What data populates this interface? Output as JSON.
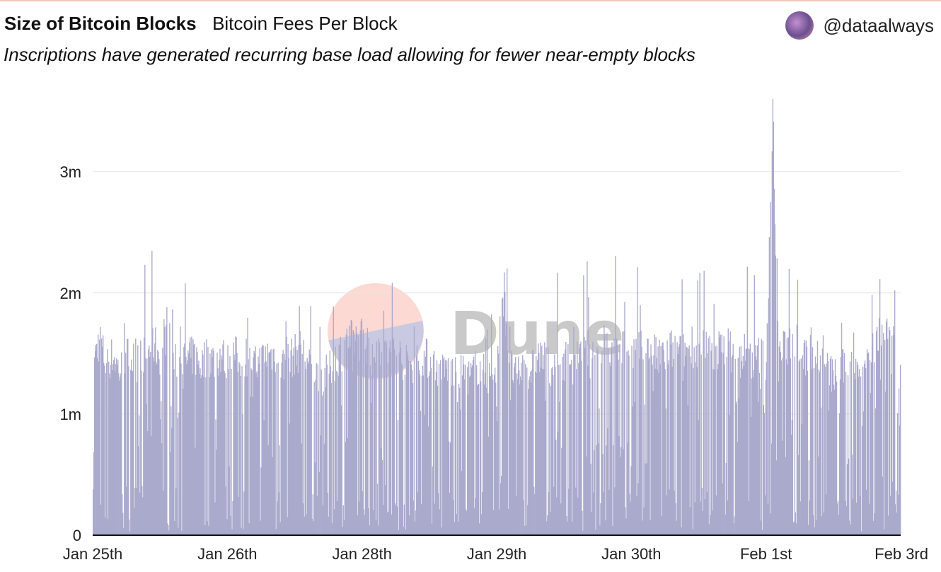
{
  "header": {
    "title": "Size of Bitcoin Blocks",
    "subtitle": "Bitcoin Fees Per Block",
    "description": "Inscriptions have generated recurring base load allowing for fewer near-empty blocks",
    "author": "@dataalways"
  },
  "watermark": {
    "text": "Dune"
  },
  "colors": {
    "series": "#aaaacd",
    "grid": "#e6e6e6",
    "baseline": "#111111",
    "watermark_top": "#fcd9d2",
    "watermark_bottom": "#c9c9e2"
  },
  "chart_data": {
    "type": "area",
    "title": "Size of Bitcoin Blocks",
    "subtitle": "Bitcoin Fees Per Block",
    "xlabel": "",
    "ylabel": "",
    "ylim": [
      0,
      3.6
    ],
    "x_ticks": [
      {
        "label": "Jan 25th",
        "day": 0
      },
      {
        "label": "Jan 26th",
        "day": 1
      },
      {
        "label": "Jan 28th",
        "day": 2
      },
      {
        "label": "Jan 29th",
        "day": 3
      },
      {
        "label": "Jan 30th",
        "day": 4
      },
      {
        "label": "Feb 1st",
        "day": 5
      },
      {
        "label": "Feb 3rd",
        "day": 6
      }
    ],
    "y_ticks": [
      {
        "label": "0",
        "value": 0
      },
      {
        "label": "1m",
        "value": 1
      },
      {
        "label": "2m",
        "value": 2
      },
      {
        "label": "3m",
        "value": 3
      }
    ],
    "grid": true,
    "legend": "none",
    "series": [
      {
        "name": "Bitcoin Fees Per Block",
        "x_unit": "day index (0 = Jan 25th, 6 = Feb 3rd)",
        "y_unit": "millions",
        "points": [
          [
            0.0,
            1.5
          ],
          [
            0.05,
            1.75
          ],
          [
            0.1,
            1.5
          ],
          [
            0.15,
            1.6
          ],
          [
            0.2,
            1.45
          ],
          [
            0.25,
            1.6
          ],
          [
            0.3,
            1.55
          ],
          [
            0.35,
            1.65
          ],
          [
            0.4,
            1.6
          ],
          [
            0.45,
            1.7
          ],
          [
            0.5,
            1.6
          ],
          [
            0.55,
            1.85
          ],
          [
            0.6,
            1.5
          ],
          [
            0.65,
            1.6
          ],
          [
            0.7,
            1.55
          ],
          [
            0.75,
            1.6
          ],
          [
            0.8,
            1.5
          ],
          [
            0.85,
            1.6
          ],
          [
            0.9,
            1.55
          ],
          [
            0.95,
            1.6
          ],
          [
            1.0,
            1.55
          ],
          [
            1.05,
            1.6
          ],
          [
            1.1,
            1.55
          ],
          [
            1.15,
            1.6
          ],
          [
            1.2,
            1.5
          ],
          [
            1.25,
            1.55
          ],
          [
            1.3,
            1.6
          ],
          [
            1.35,
            1.6
          ],
          [
            1.4,
            1.5
          ],
          [
            1.45,
            1.55
          ],
          [
            1.5,
            1.6
          ],
          [
            1.55,
            1.65
          ],
          [
            1.6,
            1.5
          ],
          [
            1.65,
            1.45
          ],
          [
            1.7,
            1.4
          ],
          [
            1.75,
            1.45
          ],
          [
            1.8,
            1.55
          ],
          [
            1.85,
            1.65
          ],
          [
            1.9,
            1.7
          ],
          [
            1.95,
            1.75
          ],
          [
            2.0,
            1.75
          ],
          [
            2.05,
            1.7
          ],
          [
            2.1,
            1.65
          ],
          [
            2.15,
            1.7
          ],
          [
            2.2,
            1.6
          ],
          [
            2.25,
            1.65
          ],
          [
            2.3,
            1.55
          ],
          [
            2.35,
            1.5
          ],
          [
            2.4,
            1.55
          ],
          [
            2.45,
            1.6
          ],
          [
            2.5,
            1.55
          ],
          [
            2.55,
            1.5
          ],
          [
            2.6,
            1.45
          ],
          [
            2.65,
            1.5
          ],
          [
            2.7,
            1.4
          ],
          [
            2.75,
            1.45
          ],
          [
            2.8,
            1.4
          ],
          [
            2.85,
            1.5
          ],
          [
            2.9,
            1.45
          ],
          [
            2.95,
            1.4
          ],
          [
            3.0,
            1.5
          ],
          [
            3.05,
            2.2
          ],
          [
            3.1,
            1.5
          ],
          [
            3.15,
            1.4
          ],
          [
            3.2,
            1.5
          ],
          [
            3.25,
            1.45
          ],
          [
            3.3,
            1.6
          ],
          [
            3.35,
            1.55
          ],
          [
            3.4,
            1.5
          ],
          [
            3.45,
            1.55
          ],
          [
            3.5,
            1.55
          ],
          [
            3.55,
            1.6
          ],
          [
            3.6,
            1.55
          ],
          [
            3.65,
            1.6
          ],
          [
            3.7,
            1.65
          ],
          [
            3.75,
            1.6
          ],
          [
            3.8,
            1.7
          ],
          [
            3.85,
            1.6
          ],
          [
            3.9,
            1.7
          ],
          [
            3.95,
            1.65
          ],
          [
            4.0,
            1.6
          ],
          [
            4.05,
            1.65
          ],
          [
            4.1,
            1.6
          ],
          [
            4.15,
            1.65
          ],
          [
            4.2,
            1.55
          ],
          [
            4.25,
            1.6
          ],
          [
            4.3,
            1.65
          ],
          [
            4.35,
            1.6
          ],
          [
            4.4,
            1.65
          ],
          [
            4.45,
            1.7
          ],
          [
            4.5,
            1.6
          ],
          [
            4.55,
            1.65
          ],
          [
            4.6,
            1.6
          ],
          [
            4.65,
            1.65
          ],
          [
            4.7,
            1.7
          ],
          [
            4.75,
            1.6
          ],
          [
            4.8,
            1.55
          ],
          [
            4.85,
            1.65
          ],
          [
            4.9,
            1.55
          ],
          [
            4.95,
            1.6
          ],
          [
            5.0,
            1.55
          ],
          [
            5.05,
            3.6
          ],
          [
            5.1,
            1.6
          ],
          [
            5.15,
            1.65
          ],
          [
            5.2,
            1.8
          ],
          [
            5.25,
            1.7
          ],
          [
            5.3,
            1.55
          ],
          [
            5.35,
            1.65
          ],
          [
            5.4,
            1.55
          ],
          [
            5.45,
            1.5
          ],
          [
            5.5,
            1.4
          ],
          [
            5.55,
            1.5
          ],
          [
            5.6,
            1.45
          ],
          [
            5.65,
            1.5
          ],
          [
            5.7,
            1.55
          ],
          [
            5.75,
            1.6
          ],
          [
            5.8,
            1.7
          ],
          [
            5.85,
            1.75
          ],
          [
            5.9,
            1.9
          ],
          [
            5.95,
            1.85
          ],
          [
            6.0,
            1.4
          ]
        ]
      }
    ]
  }
}
